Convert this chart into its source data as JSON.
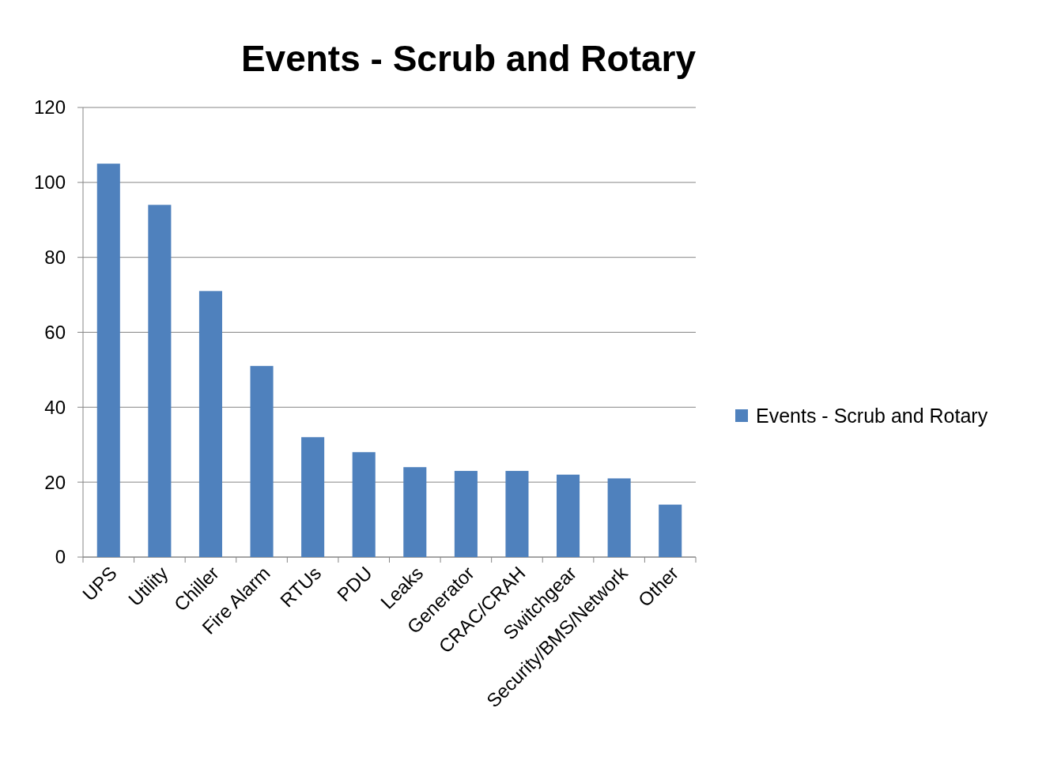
{
  "chart_data": {
    "type": "bar",
    "title": "Events - Scrub and Rotary",
    "categories": [
      "UPS",
      "Utility",
      "Chiller",
      "Fire Alarm",
      "RTUs",
      "PDU",
      "Leaks",
      "Generator",
      "CRAC/CRAH",
      "Switchgear",
      "Security/BMS/Network",
      "Other"
    ],
    "series": [
      {
        "name": "Events - Scrub and Rotary",
        "color": "#4f81bd",
        "values": [
          105,
          94,
          71,
          51,
          32,
          28,
          24,
          23,
          23,
          22,
          21,
          14
        ]
      }
    ],
    "ylim": [
      0,
      120
    ],
    "yticks": [
      0,
      20,
      40,
      60,
      80,
      100,
      120
    ],
    "grid": "y",
    "legend": "right"
  }
}
